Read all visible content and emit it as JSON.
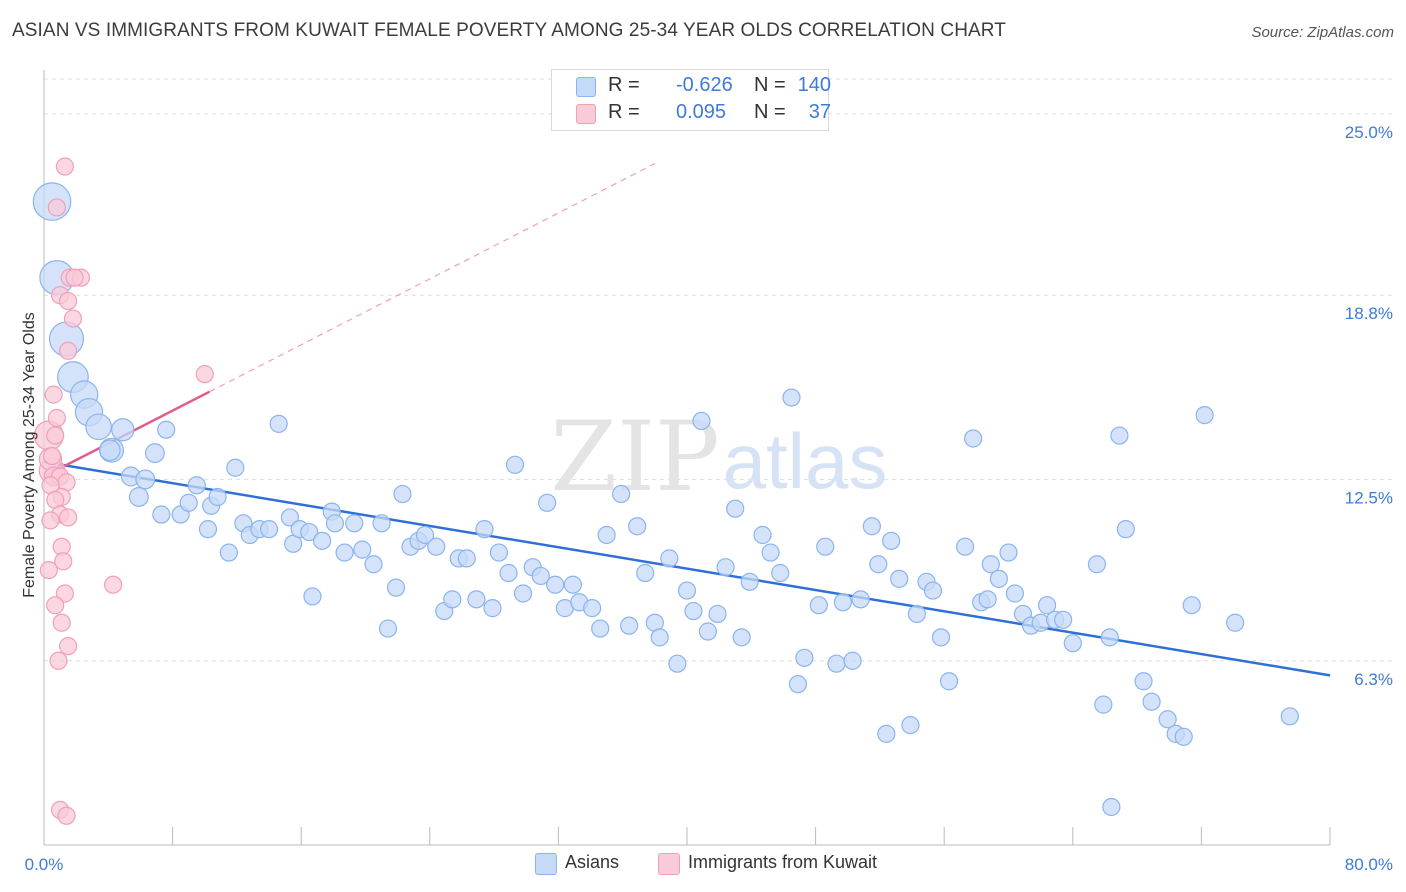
{
  "title": "ASIAN VS IMMIGRANTS FROM KUWAIT FEMALE POVERTY AMONG 25-34 YEAR OLDS CORRELATION CHART",
  "source": "Source: ZipAtlas.com",
  "watermark": {
    "zip": "ZIP",
    "atlas": "atlas"
  },
  "stats": [
    {
      "r_label": "R = ",
      "r_value": "-0.626",
      "n_label": "N = ",
      "n_value": "140",
      "color": "#8ab4f0",
      "fill": "#c5daf7"
    },
    {
      "r_label": "R = ",
      "r_value": "0.095",
      "n_label": "N = ",
      "n_value": "37",
      "color": "#f0a0b8",
      "fill": "#f9cad8"
    }
  ],
  "legend": [
    {
      "label": "Asians",
      "fill": "#c5daf7",
      "stroke": "#8ab4f0"
    },
    {
      "label": "Immigrants from Kuwait",
      "fill": "#f9cad8",
      "stroke": "#f0a0b8"
    }
  ],
  "colors": {
    "accent_text": "#3d7bd9",
    "blue_line": "#2f6fd6",
    "pink_line": "#e05a8a",
    "grid": "#dcdcdc"
  },
  "chart_data": {
    "type": "scatter",
    "xlabel": "",
    "ylabel": "Female Poverty Among 25-34 Year Olds",
    "xlim": [
      0,
      80
    ],
    "ylim": [
      0,
      26.5
    ],
    "x_tick_labels": [
      "0.0%",
      "80.0%"
    ],
    "y_ticks": [
      6.3,
      12.5,
      18.8,
      25.0
    ],
    "y_tick_labels": [
      "6.3%",
      "12.5%",
      "18.8%",
      "25.0%"
    ],
    "grid": true,
    "legend_position": "bottom-center",
    "series": [
      {
        "name": "Asians",
        "trend": {
          "x": [
            0.0,
            80.0
          ],
          "y": [
            13.1,
            5.8
          ]
        },
        "points": [
          [
            0.5,
            22.0,
            2.2
          ],
          [
            0.8,
            19.4,
            2.0
          ],
          [
            1.4,
            17.3,
            2.0
          ],
          [
            1.8,
            16.0,
            1.8
          ],
          [
            2.5,
            15.4,
            1.6
          ],
          [
            2.8,
            14.8,
            1.6
          ],
          [
            3.4,
            14.3,
            1.5
          ],
          [
            4.2,
            13.5,
            1.4
          ],
          [
            4.9,
            14.2,
            1.3
          ],
          [
            4.1,
            13.5,
            1.2
          ],
          [
            5.4,
            12.6,
            1.1
          ],
          [
            6.3,
            12.5,
            1.1
          ],
          [
            5.9,
            11.9,
            1.1
          ],
          [
            6.9,
            13.4,
            1.1
          ],
          [
            7.6,
            14.2,
            1.0
          ],
          [
            7.3,
            11.3,
            1.0
          ],
          [
            8.5,
            11.3,
            1.0
          ],
          [
            9.0,
            11.7,
            1.0
          ],
          [
            9.5,
            12.3,
            1.0
          ],
          [
            10.2,
            10.8,
            1.0
          ],
          [
            10.4,
            11.6,
            1.0
          ],
          [
            10.8,
            11.9,
            1.0
          ],
          [
            11.5,
            10.0,
            1.0
          ],
          [
            11.9,
            12.9,
            1.0
          ],
          [
            12.4,
            11.0,
            1.0
          ],
          [
            12.8,
            10.6,
            1.0
          ],
          [
            13.4,
            10.8,
            1.0
          ],
          [
            14.0,
            10.8,
            1.0
          ],
          [
            14.6,
            14.4,
            1.0
          ],
          [
            15.3,
            11.2,
            1.0
          ],
          [
            15.5,
            10.3,
            1.0
          ],
          [
            15.9,
            10.8,
            1.0
          ],
          [
            16.5,
            10.7,
            1.0
          ],
          [
            16.7,
            8.5,
            1.0
          ],
          [
            17.3,
            10.4,
            1.0
          ],
          [
            17.9,
            11.4,
            1.0
          ],
          [
            18.1,
            11.0,
            1.0
          ],
          [
            18.7,
            10.0,
            1.0
          ],
          [
            19.3,
            11.0,
            1.0
          ],
          [
            19.8,
            10.1,
            1.0
          ],
          [
            20.5,
            9.6,
            1.0
          ],
          [
            21.0,
            11.0,
            1.0
          ],
          [
            21.4,
            7.4,
            1.0
          ],
          [
            21.9,
            8.8,
            1.0
          ],
          [
            22.3,
            12.0,
            1.0
          ],
          [
            22.8,
            10.2,
            1.0
          ],
          [
            23.3,
            10.4,
            1.0
          ],
          [
            23.7,
            10.6,
            1.0
          ],
          [
            24.4,
            10.2,
            1.0
          ],
          [
            24.9,
            8.0,
            1.0
          ],
          [
            25.4,
            8.4,
            1.0
          ],
          [
            25.8,
            9.8,
            1.0
          ],
          [
            26.3,
            9.8,
            1.0
          ],
          [
            26.9,
            8.4,
            1.0
          ],
          [
            27.4,
            10.8,
            1.0
          ],
          [
            27.9,
            8.1,
            1.0
          ],
          [
            28.3,
            10.0,
            1.0
          ],
          [
            28.9,
            9.3,
            1.0
          ],
          [
            29.3,
            13.0,
            1.0
          ],
          [
            29.8,
            8.6,
            1.0
          ],
          [
            30.4,
            9.5,
            1.0
          ],
          [
            30.9,
            9.2,
            1.0
          ],
          [
            31.3,
            11.7,
            1.0
          ],
          [
            31.8,
            8.9,
            1.0
          ],
          [
            32.4,
            8.1,
            1.0
          ],
          [
            32.9,
            8.9,
            1.0
          ],
          [
            33.3,
            8.3,
            1.0
          ],
          [
            34.1,
            8.1,
            1.0
          ],
          [
            34.6,
            7.4,
            1.0
          ],
          [
            35.0,
            10.6,
            1.0
          ],
          [
            35.9,
            12.0,
            1.0
          ],
          [
            36.4,
            7.5,
            1.0
          ],
          [
            36.9,
            10.9,
            1.0
          ],
          [
            37.4,
            9.3,
            1.0
          ],
          [
            38.0,
            7.6,
            1.0
          ],
          [
            38.3,
            7.1,
            1.0
          ],
          [
            38.9,
            9.8,
            1.0
          ],
          [
            39.4,
            6.2,
            1.0
          ],
          [
            40.0,
            8.7,
            1.0
          ],
          [
            40.4,
            8.0,
            1.0
          ],
          [
            40.9,
            14.5,
            1.0
          ],
          [
            41.3,
            7.3,
            1.0
          ],
          [
            41.9,
            7.9,
            1.0
          ],
          [
            42.4,
            9.5,
            1.0
          ],
          [
            43.0,
            11.5,
            1.0
          ],
          [
            43.4,
            7.1,
            1.0
          ],
          [
            43.9,
            9.0,
            1.0
          ],
          [
            44.7,
            10.6,
            1.0
          ],
          [
            45.2,
            10.0,
            1.0
          ],
          [
            45.8,
            9.3,
            1.0
          ],
          [
            46.5,
            15.3,
            1.0
          ],
          [
            46.9,
            5.5,
            1.0
          ],
          [
            47.3,
            6.4,
            1.0
          ],
          [
            48.2,
            8.2,
            1.0
          ],
          [
            48.6,
            10.2,
            1.0
          ],
          [
            49.3,
            6.2,
            1.0
          ],
          [
            49.7,
            8.3,
            1.0
          ],
          [
            50.3,
            6.3,
            1.0
          ],
          [
            50.8,
            8.4,
            1.0
          ],
          [
            51.5,
            10.9,
            1.0
          ],
          [
            51.9,
            9.6,
            1.0
          ],
          [
            52.4,
            3.8,
            1.0
          ],
          [
            52.7,
            10.4,
            1.0
          ],
          [
            53.2,
            9.1,
            1.0
          ],
          [
            53.9,
            4.1,
            1.0
          ],
          [
            54.3,
            7.9,
            1.0
          ],
          [
            54.9,
            9.0,
            1.0
          ],
          [
            55.3,
            8.7,
            1.0
          ],
          [
            55.8,
            7.1,
            1.0
          ],
          [
            56.3,
            5.6,
            1.0
          ],
          [
            57.3,
            10.2,
            1.0
          ],
          [
            57.8,
            13.9,
            1.0
          ],
          [
            58.3,
            8.3,
            1.0
          ],
          [
            58.9,
            9.6,
            1.0
          ],
          [
            59.4,
            9.1,
            1.0
          ],
          [
            60.0,
            10.0,
            1.0
          ],
          [
            60.4,
            8.6,
            1.0
          ],
          [
            60.9,
            7.9,
            1.0
          ],
          [
            61.4,
            7.5,
            1.0
          ],
          [
            62.0,
            7.6,
            1.0
          ],
          [
            62.4,
            8.2,
            1.0
          ],
          [
            62.9,
            7.7,
            1.0
          ],
          [
            63.4,
            7.7,
            1.0
          ],
          [
            64.0,
            6.9,
            1.0
          ],
          [
            65.5,
            9.6,
            1.0
          ],
          [
            65.9,
            4.8,
            1.0
          ],
          [
            66.3,
            7.1,
            1.0
          ],
          [
            66.9,
            14.0,
            1.0
          ],
          [
            67.3,
            10.8,
            1.0
          ],
          [
            66.4,
            1.3,
            1.0
          ],
          [
            68.4,
            5.6,
            1.0
          ],
          [
            68.9,
            4.9,
            1.0
          ],
          [
            69.9,
            4.3,
            1.0
          ],
          [
            70.4,
            3.8,
            1.0
          ],
          [
            70.9,
            3.7,
            1.0
          ],
          [
            71.4,
            8.2,
            1.0
          ],
          [
            72.2,
            14.7,
            1.0
          ],
          [
            74.1,
            7.6,
            1.0
          ],
          [
            77.5,
            4.4,
            1.0
          ],
          [
            58.7,
            8.4,
            1.0
          ]
        ]
      },
      {
        "name": "Immigrants from Kuwait",
        "trend": {
          "x": [
            0.0,
            10.3
          ],
          "y": [
            12.6,
            15.5
          ]
        },
        "trend_extension": {
          "x": [
            10.3,
            38.0
          ],
          "y": [
            15.5,
            23.3
          ]
        },
        "points": [
          [
            0.3,
            14.0,
            1.7
          ],
          [
            0.5,
            12.8,
            1.5
          ],
          [
            0.4,
            13.2,
            1.3
          ],
          [
            0.6,
            12.6,
            1.1
          ],
          [
            1.3,
            23.2,
            1.0
          ],
          [
            0.8,
            21.8,
            1.0
          ],
          [
            1.6,
            19.4,
            1.0
          ],
          [
            2.3,
            19.4,
            1.0
          ],
          [
            1.9,
            19.4,
            1.0
          ],
          [
            1.0,
            18.8,
            1.0
          ],
          [
            1.5,
            18.6,
            1.0
          ],
          [
            1.8,
            18.0,
            1.0
          ],
          [
            1.5,
            16.9,
            1.0
          ],
          [
            0.6,
            15.4,
            1.0
          ],
          [
            0.8,
            14.6,
            1.0
          ],
          [
            0.7,
            14.0,
            1.0
          ],
          [
            0.5,
            13.3,
            1.0
          ],
          [
            1.0,
            12.6,
            1.0
          ],
          [
            1.4,
            12.4,
            1.0
          ],
          [
            0.4,
            12.3,
            1.0
          ],
          [
            1.1,
            11.9,
            1.0
          ],
          [
            0.7,
            11.8,
            1.0
          ],
          [
            1.0,
            11.3,
            1.0
          ],
          [
            0.4,
            11.1,
            1.0
          ],
          [
            1.5,
            11.2,
            1.0
          ],
          [
            1.1,
            10.2,
            1.0
          ],
          [
            1.2,
            9.7,
            1.0
          ],
          [
            0.3,
            9.4,
            1.0
          ],
          [
            1.3,
            8.6,
            1.0
          ],
          [
            0.7,
            8.2,
            1.0
          ],
          [
            1.1,
            7.6,
            1.0
          ],
          [
            1.5,
            6.8,
            1.0
          ],
          [
            0.9,
            6.3,
            1.0
          ],
          [
            4.3,
            8.9,
            1.0
          ],
          [
            10.0,
            16.1,
            1.0
          ],
          [
            1.0,
            1.2,
            1.0
          ],
          [
            1.4,
            1.0,
            1.0
          ]
        ]
      }
    ]
  }
}
